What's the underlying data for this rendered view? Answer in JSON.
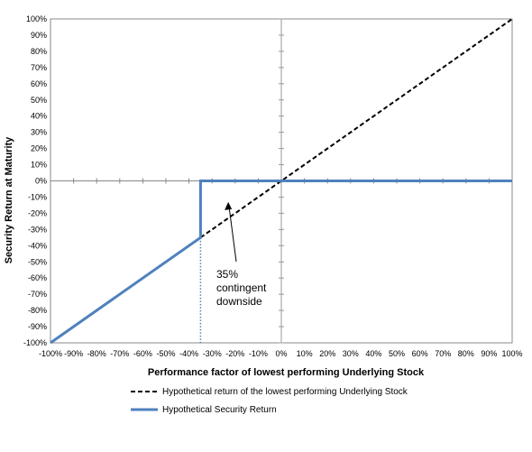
{
  "chart_data": {
    "type": "line",
    "xlabel": "Performance factor of lowest performing Underlying Stock",
    "ylabel": "Security Return at Maturity",
    "xlim": [
      -100,
      100
    ],
    "ylim": [
      -100,
      100
    ],
    "x_ticks": [
      -100,
      -90,
      -80,
      -70,
      -60,
      -50,
      -40,
      -30,
      -20,
      -10,
      0,
      10,
      20,
      30,
      40,
      50,
      60,
      70,
      80,
      90,
      100
    ],
    "y_ticks": [
      -100,
      -90,
      -80,
      -70,
      -60,
      -50,
      -40,
      -30,
      -20,
      -10,
      0,
      10,
      20,
      30,
      40,
      50,
      60,
      70,
      80,
      90,
      100
    ],
    "x_tick_labels": [
      "-100%",
      "-90%",
      "-80%",
      "-70%",
      "-60%",
      "-50%",
      "-40%",
      "-30%",
      "-20%",
      "-10%",
      "0%",
      "10%",
      "20%",
      "30%",
      "40%",
      "50%",
      "60%",
      "70%",
      "80%",
      "90%",
      "100%"
    ],
    "y_tick_labels": [
      "-100%",
      "-90%",
      "-80%",
      "-70%",
      "-60%",
      "-50%",
      "-40%",
      "-30%",
      "-20%",
      "-10%",
      "0%",
      "10%",
      "20%",
      "30%",
      "40%",
      "50%",
      "60%",
      "70%",
      "80%",
      "90%",
      "100%"
    ],
    "series": [
      {
        "name": "Hypothetical return of the lowest performing Underlying Stock",
        "style": "dashed",
        "color": "#000000",
        "x": [
          -35,
          100
        ],
        "y": [
          -35,
          100
        ]
      },
      {
        "name": "Hypothetical Security Return",
        "style": "solid",
        "color": "#4f81bd",
        "x": [
          -100,
          -35,
          -35,
          100
        ],
        "y": [
          -100,
          -35,
          0,
          0
        ]
      }
    ],
    "threshold_line": {
      "x": -35,
      "y_from": -100,
      "y_to": -35,
      "style": "dotted",
      "color": "#4f81bd"
    },
    "annotation": {
      "lines": [
        "35%",
        "contingent",
        "downside"
      ],
      "arrow_target": [
        -23,
        -13
      ]
    },
    "legend_position": "bottom",
    "grid": false
  }
}
